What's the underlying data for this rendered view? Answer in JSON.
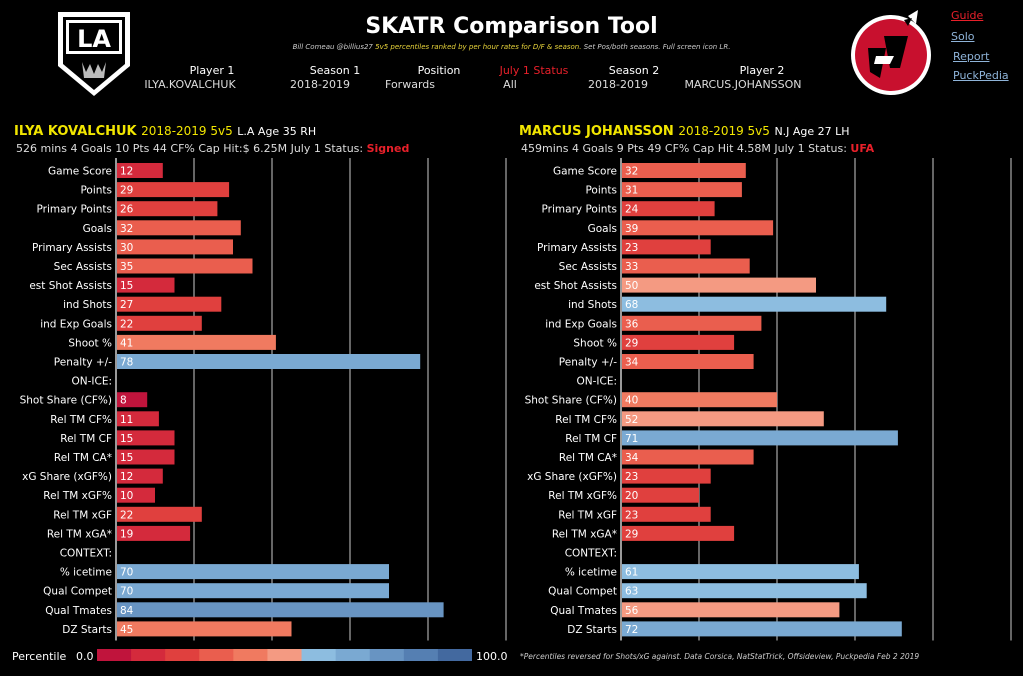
{
  "header": {
    "title": "SKATR Comparison Tool",
    "subtitle_author": "Bill Comeau @billius27",
    "subtitle_highlight": "5v5 percentiles ranked by per hour rates for D/F & season.",
    "subtitle_rest": "Set Pos/both seasons. Full screen icon LR."
  },
  "selectors": {
    "player1_label": "Player 1",
    "player1_value": "ILYA.KOVALCHUK",
    "season1_label": "Season 1",
    "season1_value": "2018-2019",
    "position_label": "Position",
    "position_value": "Forwards",
    "status_label": "July 1 Status",
    "status_value": "All",
    "season2_label": "Season 2",
    "season2_value": "2018-2019",
    "player2_label": "Player 2",
    "player2_value": "MARCUS.JOHANSSON"
  },
  "nav": {
    "guide": "Guide",
    "solo": "Solo",
    "report": "Report",
    "puckpedia": "PuckPedia"
  },
  "logos": {
    "left_text": "LA",
    "left_icon": "la-kings-logo",
    "right_icon": "nj-devils-logo"
  },
  "player1": {
    "name": "ILYA KOVALCHUK",
    "season": "2018-2019 5v5",
    "meta": "L.A Age 35   RH",
    "stats": "526 mins  4  Goals  10  Pts  44  CF%  Cap Hit:$ 6.25M   July 1 Status:",
    "status": "Signed"
  },
  "player2": {
    "name": "MARCUS JOHANSSON",
    "season": "2018-2019 5v5",
    "meta": "N.J Age 27   LH",
    "stats": "459mins  4  Goals  9  Pts  49  CF%  Cap Hit  4.58M   July 1 Status:",
    "status": "UFA"
  },
  "legend": {
    "label": "Percentile",
    "min": "0.0",
    "max": "100.0"
  },
  "footnote": "*Percentiles reversed for Shots/xG against. Data Corsica, NatStatTrick, Offsideview, Puckpedia  Feb 2 2019",
  "colors": {
    "scale": [
      "#c0143c",
      "#d42a3c",
      "#e0403e",
      "#ea5e4e",
      "#f07a60",
      "#f49a82",
      "#8dbde0",
      "#7aa9d2",
      "#6894c2",
      "#557fb2",
      "#43699f"
    ],
    "text": "#ffffff",
    "grid": "#ffffff"
  },
  "chart_data": [
    {
      "type": "bar",
      "orientation": "horizontal",
      "player": "ILYA KOVALCHUK",
      "xlim": [
        0,
        100
      ],
      "categories": [
        "Game Score",
        "Points",
        "Primary Points",
        "Goals",
        "Primary Assists",
        "Sec Assists",
        "est Shot Assists",
        "ind Shots",
        "ind Exp Goals",
        "Shoot %",
        "Penalty +/-",
        "ON-ICE:",
        "Shot Share (CF%)",
        "Rel TM CF%",
        "Rel TM CF",
        "Rel TM CA*",
        "xG Share (xGF%)",
        "Rel TM xGF%",
        "Rel TM xGF",
        "Rel TM xGA*",
        "CONTEXT:",
        "% icetime",
        "Qual Compet",
        "Qual Tmates",
        "DZ Starts"
      ],
      "values": [
        12,
        29,
        26,
        32,
        30,
        35,
        15,
        27,
        22,
        41,
        78,
        null,
        8,
        11,
        15,
        15,
        12,
        10,
        22,
        19,
        null,
        70,
        70,
        84,
        45
      ]
    },
    {
      "type": "bar",
      "orientation": "horizontal",
      "player": "MARCUS JOHANSSON",
      "xlim": [
        0,
        100
      ],
      "categories": [
        "Game Score",
        "Points",
        "Primary Points",
        "Goals",
        "Primary Assists",
        "Sec Assists",
        "est Shot Assists",
        "ind Shots",
        "ind Exp Goals",
        "Shoot %",
        "Penalty +/-",
        "ON-ICE:",
        "Shot Share (CF%)",
        "Rel TM CF%",
        "Rel TM CF",
        "Rel TM CA*",
        "xG Share (xGF%)",
        "Rel TM xGF%",
        "Rel TM xGF",
        "Rel TM xGA*",
        "CONTEXT:",
        "% icetime",
        "Qual Compet",
        "Qual Tmates",
        "DZ Starts"
      ],
      "values": [
        32,
        31,
        24,
        39,
        23,
        33,
        50,
        68,
        36,
        29,
        34,
        null,
        40,
        52,
        71,
        34,
        23,
        20,
        23,
        29,
        null,
        61,
        63,
        56,
        72
      ]
    }
  ]
}
